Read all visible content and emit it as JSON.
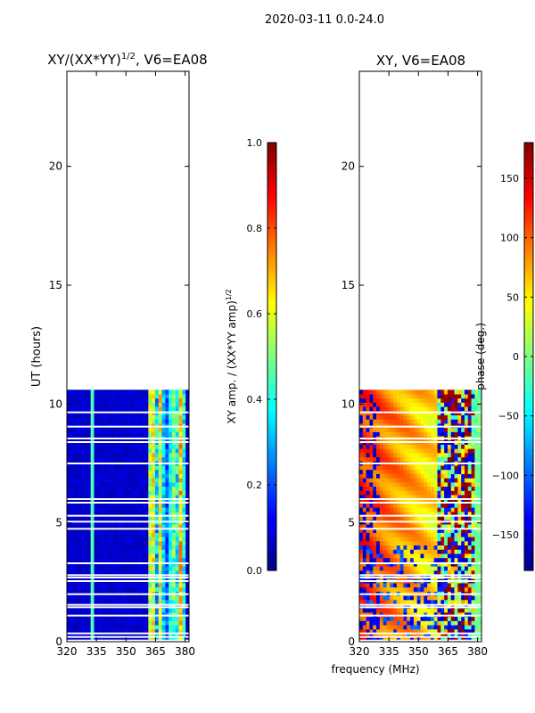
{
  "figure_title": "2020-03-11 0.0-24.0",
  "chart_data": [
    {
      "type": "heatmap",
      "title": "XY/(XX*YY)",
      "title_superscript": "1/2",
      "title_suffix": ", V6=EA08",
      "xlabel": "",
      "ylabel": "UT (hours)",
      "xlim": [
        320,
        382
      ],
      "ylim": [
        0,
        24
      ],
      "xticks": [
        320,
        335,
        350,
        365,
        380
      ],
      "yticks": [
        0,
        5,
        10,
        15,
        20
      ],
      "data_extent_ut": [
        0,
        10.6
      ],
      "quantity": "amplitude",
      "colorbar": {
        "label": "XY amp. / (XX*YY amp)",
        "label_superscript": "1/2",
        "range": [
          0.0,
          1.0
        ],
        "ticks": [
          "0.0",
          "0.2",
          "0.4",
          "0.6",
          "0.8",
          "1.0"
        ],
        "tick_values": [
          0.0,
          0.2,
          0.4,
          0.6,
          0.8,
          1.0
        ],
        "colormap": "jet"
      }
    },
    {
      "type": "heatmap",
      "title": "XY, V6=EA08",
      "xlabel": "frequency (MHz)",
      "ylabel": "",
      "xlim": [
        320,
        382
      ],
      "ylim": [
        0,
        24
      ],
      "xticks": [
        320,
        335,
        350,
        365,
        380
      ],
      "yticks": [
        0,
        5,
        10,
        15,
        20
      ],
      "data_extent_ut": [
        0,
        10.6
      ],
      "quantity": "phase",
      "colorbar": {
        "label": "phase (deg.)",
        "range": [
          -180,
          180
        ],
        "ticks": [
          "150",
          "100",
          "50",
          "0",
          "−50",
          "−100",
          "−150"
        ],
        "tick_values": [
          150,
          100,
          50,
          0,
          -50,
          -100,
          -150
        ],
        "colormap": "jet"
      }
    }
  ],
  "gap_rows_ut": [
    0.05,
    0.2,
    0.35,
    1.1,
    1.45,
    1.55,
    2.0,
    2.55,
    2.7,
    2.8,
    3.3,
    4.75,
    5.05,
    5.3,
    5.85,
    6.0,
    7.5,
    8.4,
    8.55,
    9.05,
    9.65
  ]
}
